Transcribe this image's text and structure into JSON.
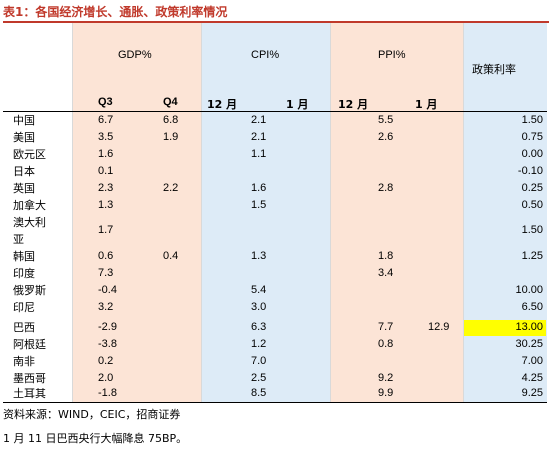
{
  "title": "表1：各国经济增长、通胀、政策利率情况",
  "header": {
    "gdp": "GDP%",
    "cpi": "CPI%",
    "ppi": "PPI%",
    "rate": "政策利率",
    "q3": "Q3",
    "q4": "Q4",
    "cpi_dec": "12 月",
    "cpi_jan": "1 月",
    "ppi_dec": "12 月",
    "ppi_jan": "1 月"
  },
  "rows": [
    {
      "name": "中国",
      "q3": "6.7",
      "q4": "6.8",
      "cpi": "2.1",
      "ppi": "5.5",
      "ppi_jan": "",
      "rate": "1.50"
    },
    {
      "name": "美国",
      "q3": "3.5",
      "q4": "1.9",
      "cpi": "2.1",
      "ppi": "2.6",
      "ppi_jan": "",
      "rate": "0.75"
    },
    {
      "name": "欧元区",
      "q3": "1.6",
      "q4": "",
      "cpi": "1.1",
      "ppi": "",
      "ppi_jan": "",
      "rate": "0.00"
    },
    {
      "name": "日本",
      "q3": "0.1",
      "q4": "",
      "cpi": "",
      "ppi": "",
      "ppi_jan": "",
      "rate": "-0.10"
    },
    {
      "name": "英国",
      "q3": "2.3",
      "q4": "2.2",
      "cpi": "1.6",
      "ppi": "2.8",
      "ppi_jan": "",
      "rate": "0.25"
    },
    {
      "name": "加拿大",
      "q3": "1.3",
      "q4": "",
      "cpi": "1.5",
      "ppi": "",
      "ppi_jan": "",
      "rate": "0.50"
    },
    {
      "name": "澳大利",
      "name2": "亚",
      "q3": "1.7",
      "q4": "",
      "cpi": "",
      "ppi": "",
      "ppi_jan": "",
      "rate": "1.50"
    },
    {
      "name": "韩国",
      "q3": "0.6",
      "q4": "0.4",
      "cpi": "1.3",
      "ppi": "1.8",
      "ppi_jan": "",
      "rate": "1.25"
    },
    {
      "name": "印度",
      "q3": "7.3",
      "q4": "",
      "cpi": "",
      "ppi": "3.4",
      "ppi_jan": "",
      "rate": ""
    },
    {
      "name": "俄罗斯",
      "q3": "-0.4",
      "q4": "",
      "cpi": "5.4",
      "ppi": "",
      "ppi_jan": "",
      "rate": "10.00"
    },
    {
      "name": "印尼",
      "q3": "3.2",
      "q4": "",
      "cpi": "3.0",
      "ppi": "",
      "ppi_jan": "",
      "rate": "6.50"
    },
    {
      "name": "巴西",
      "q3": "-2.9",
      "q4": "",
      "cpi": "6.3",
      "ppi": "7.7",
      "ppi_jan": "12.9",
      "rate": "13.00"
    },
    {
      "name": "阿根廷",
      "q3": "-3.8",
      "q4": "",
      "cpi": "1.2",
      "ppi": "0.8",
      "ppi_jan": "",
      "rate": "30.25"
    },
    {
      "name": "南非",
      "q3": "0.2",
      "q4": "",
      "cpi": "7.0",
      "ppi": "",
      "ppi_jan": "",
      "rate": "7.00"
    },
    {
      "name": "墨西哥",
      "q3": "2.0",
      "q4": "",
      "cpi": "2.5",
      "ppi": "9.2",
      "ppi_jan": "",
      "rate": "4.25"
    },
    {
      "name": "土耳其",
      "q3": "-1.8",
      "q4": "",
      "cpi": "8.5",
      "ppi": "9.9",
      "ppi_jan": "",
      "rate": "9.25"
    }
  ],
  "source": "资料来源：WIND，CEIC，招商证券",
  "note": "1 月 11 日巴西央行大幅降息 75BP。",
  "colors": {
    "title": "#c0392b",
    "orange_band": "#fce4d6",
    "blue_band": "#ddebf7",
    "highlight": "#ffff00"
  }
}
